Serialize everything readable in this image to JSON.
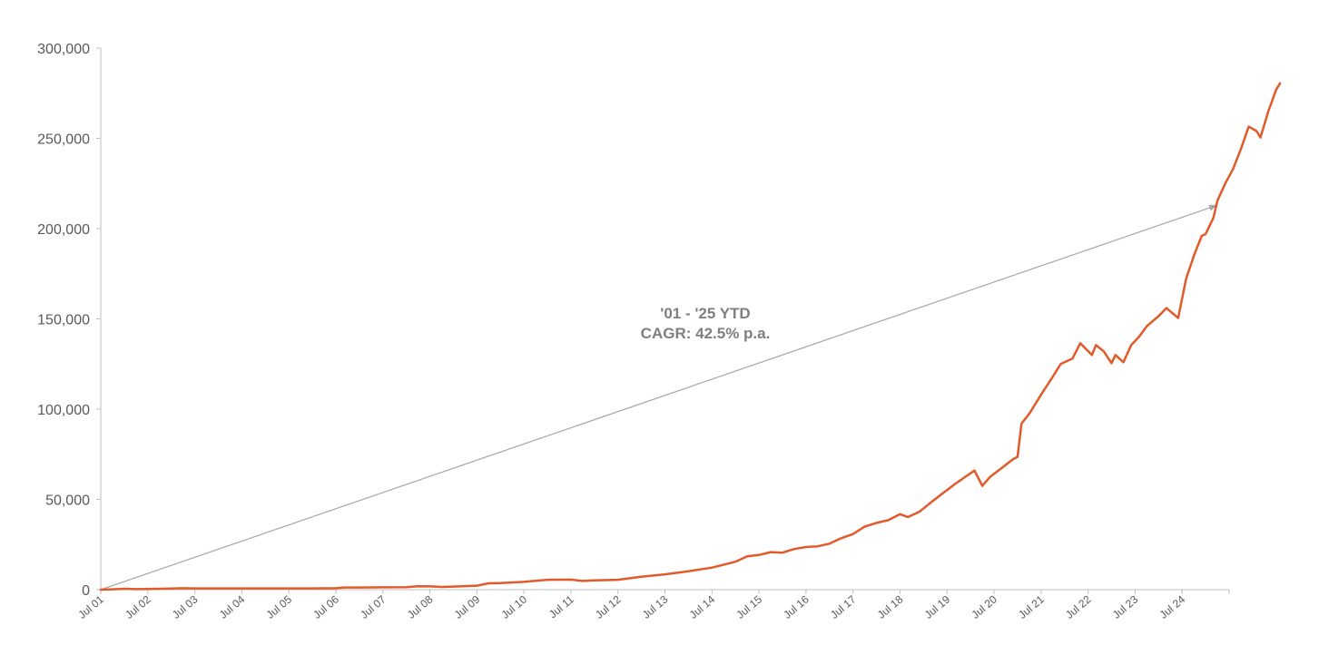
{
  "chart_data": {
    "type": "line",
    "title": "",
    "xlabel": "",
    "ylabel": "",
    "ylim": [
      0,
      300000
    ],
    "y_ticks": [
      0,
      50000,
      100000,
      150000,
      200000,
      250000,
      300000
    ],
    "y_tick_labels": [
      "0",
      "50,000",
      "100,000",
      "150,000",
      "200,000",
      "250,000",
      "300,000"
    ],
    "x_tick_labels": [
      "Jul 01",
      "Jul 02",
      "Jul 03",
      "Jul 04",
      "Jul 05",
      "Jul 06",
      "Jul 07",
      "Jul 08",
      "Jul 09",
      "Jul 10",
      "Jul 11",
      "Jul 12",
      "Jul 13",
      "Jul 14",
      "Jul 15",
      "Jul 16",
      "Jul 17",
      "Jul 18",
      "Jul 19",
      "Jul 20",
      "Jul 21",
      "Jul 22",
      "Jul 23",
      "Jul 24"
    ],
    "x_range": [
      "2001-07",
      "2025-07"
    ],
    "grid": false,
    "line_color": "#E2592A",
    "arrow_color": "#a6a6a6",
    "annotation": {
      "lines": [
        "'01 - '25 YTD",
        "CAGR: 42.5% p.a."
      ]
    },
    "trend_arrow": {
      "from": {
        "x": "2001-07",
        "y": 0
      },
      "to": {
        "x": "2025-04",
        "y": 213000
      }
    },
    "series": [
      {
        "points": [
          [
            "2001-07",
            0
          ],
          [
            "2001-10",
            200
          ],
          [
            "2002-01",
            500
          ],
          [
            "2002-04",
            300
          ],
          [
            "2002-07",
            400
          ],
          [
            "2002-10",
            500
          ],
          [
            "2003-01",
            600
          ],
          [
            "2003-04",
            800
          ],
          [
            "2003-07",
            700
          ],
          [
            "2004-01",
            700
          ],
          [
            "2004-07",
            700
          ],
          [
            "2005-01",
            700
          ],
          [
            "2005-07",
            700
          ],
          [
            "2006-01",
            700
          ],
          [
            "2006-07",
            800
          ],
          [
            "2006-09",
            1200
          ],
          [
            "2007-01",
            1200
          ],
          [
            "2007-07",
            1300
          ],
          [
            "2008-01",
            1400
          ],
          [
            "2008-04",
            1900
          ],
          [
            "2008-07",
            1800
          ],
          [
            "2008-10",
            1500
          ],
          [
            "2009-01",
            1700
          ],
          [
            "2009-07",
            2200
          ],
          [
            "2009-10",
            3500
          ],
          [
            "2010-01",
            3600
          ],
          [
            "2010-07",
            4300
          ],
          [
            "2011-01",
            5500
          ],
          [
            "2011-07",
            5600
          ],
          [
            "2011-10",
            4800
          ],
          [
            "2012-01",
            5200
          ],
          [
            "2012-07",
            5500
          ],
          [
            "2013-01",
            7200
          ],
          [
            "2013-07",
            8500
          ],
          [
            "2014-01",
            10200
          ],
          [
            "2014-07",
            12200
          ],
          [
            "2015-01",
            15500
          ],
          [
            "2015-04",
            18500
          ],
          [
            "2015-07",
            19200
          ],
          [
            "2015-10",
            20800
          ],
          [
            "2016-01",
            20500
          ],
          [
            "2016-04",
            22500
          ],
          [
            "2016-07",
            23600
          ],
          [
            "2016-10",
            24000
          ],
          [
            "2017-01",
            25500
          ],
          [
            "2017-04",
            28500
          ],
          [
            "2017-07",
            30800
          ],
          [
            "2017-10",
            35000
          ],
          [
            "2018-01",
            37000
          ],
          [
            "2018-04",
            38500
          ],
          [
            "2018-07",
            41800
          ],
          [
            "2018-09",
            40200
          ],
          [
            "2018-12",
            43200
          ],
          [
            "2019-03",
            48500
          ],
          [
            "2019-06",
            53500
          ],
          [
            "2019-09",
            58500
          ],
          [
            "2019-12",
            63000
          ],
          [
            "2020-02",
            66000
          ],
          [
            "2020-04",
            57500
          ],
          [
            "2020-06",
            62500
          ],
          [
            "2020-09",
            67500
          ],
          [
            "2020-12",
            72500
          ],
          [
            "2021-01",
            73500
          ],
          [
            "2021-02",
            92000
          ],
          [
            "2021-04",
            97500
          ],
          [
            "2021-07",
            108000
          ],
          [
            "2021-10",
            118000
          ],
          [
            "2021-12",
            125000
          ],
          [
            "2022-03",
            128000
          ],
          [
            "2022-05",
            136500
          ],
          [
            "2022-08",
            130000
          ],
          [
            "2022-09",
            135500
          ],
          [
            "2022-11",
            132000
          ],
          [
            "2023-01",
            125500
          ],
          [
            "2023-02",
            130000
          ],
          [
            "2023-04",
            126000
          ],
          [
            "2023-06",
            135500
          ],
          [
            "2023-08",
            140000
          ],
          [
            "2023-10",
            146000
          ],
          [
            "2024-01",
            151500
          ],
          [
            "2024-03",
            156000
          ],
          [
            "2024-06",
            150500
          ],
          [
            "2024-08",
            172000
          ],
          [
            "2024-10",
            185000
          ],
          [
            "2024-12",
            196000
          ],
          [
            "2025-01",
            197000
          ],
          [
            "2025-03",
            206000
          ],
          [
            "2025-04",
            215500
          ],
          [
            "2025-06",
            225000
          ],
          [
            "2025-08",
            233000
          ],
          [
            "2025-10",
            244000
          ],
          [
            "2025-12",
            256500
          ],
          [
            "2026-02",
            254000
          ],
          [
            "2026-03",
            250500
          ],
          [
            "2026-05",
            265000
          ],
          [
            "2026-07",
            277000
          ],
          [
            "2026-08",
            280500
          ]
        ]
      }
    ]
  }
}
